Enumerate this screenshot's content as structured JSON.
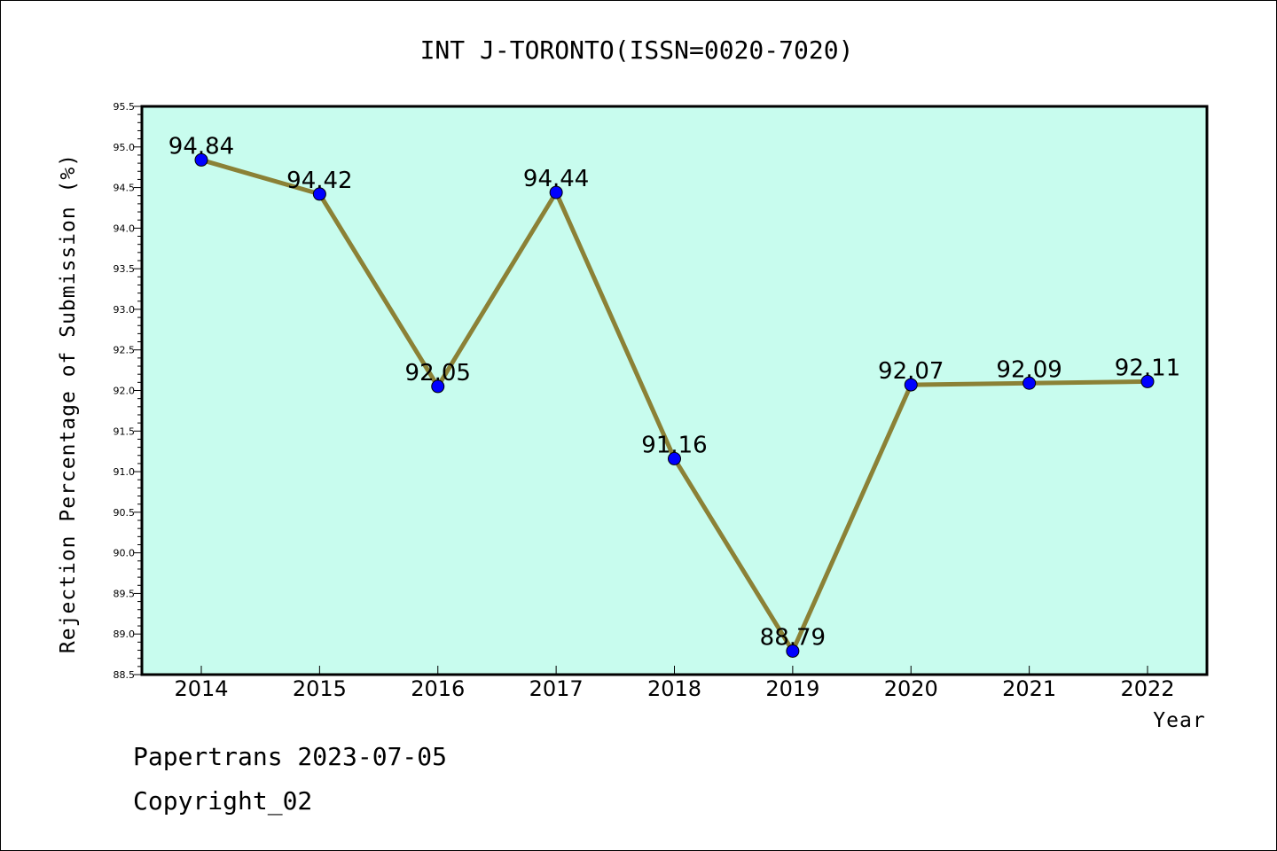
{
  "chart_data": {
    "type": "line",
    "title": "INT J-TORONTO(ISSN=0020-7020)",
    "xlabel": "Year",
    "ylabel": "Rejection Percentage of Submission (%)",
    "categories": [
      "2014",
      "2015",
      "2016",
      "2017",
      "2018",
      "2019",
      "2020",
      "2021",
      "2022"
    ],
    "values": [
      94.84,
      94.42,
      92.05,
      94.44,
      91.16,
      88.79,
      92.07,
      92.09,
      92.11
    ],
    "data_labels": [
      "94.84",
      "94.42",
      "92.05",
      "94.44",
      "91.16",
      "88.79",
      "92.07",
      "92.09",
      "92.11"
    ],
    "ylim": [
      88.5,
      95.5
    ],
    "yticks": [
      "88.5",
      "89.0",
      "89.5",
      "90.0",
      "90.5",
      "91.0",
      "91.5",
      "92.0",
      "92.5",
      "93.0",
      "93.5",
      "94.0",
      "94.5",
      "95.0",
      "95.5"
    ],
    "grid": false,
    "colors": {
      "plot_background": "#c8fcee",
      "line": "#8b8136",
      "marker": "#0000ff"
    }
  },
  "footer": {
    "line1": "Papertrans 2023-07-05",
    "line2": "Copyright_02"
  }
}
